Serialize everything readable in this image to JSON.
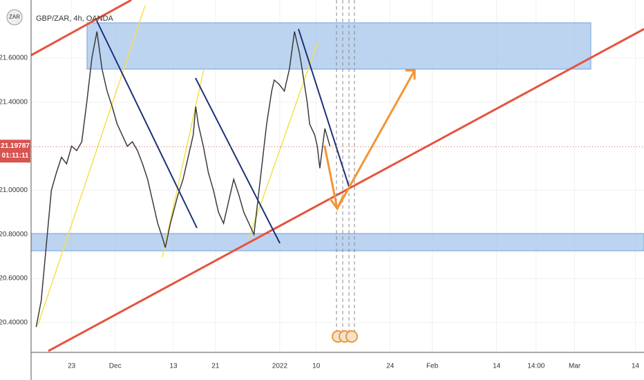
{
  "chart_data": {
    "type": "line",
    "title": "GBP/ZAR, 4h, OANDA",
    "symbol_badge": "ZAR",
    "color": "#3a3a3a",
    "x": [
      -7,
      -6,
      -5,
      -4,
      -3,
      -2,
      -1,
      0,
      1,
      2,
      3,
      4,
      5,
      6,
      7,
      8,
      9,
      10,
      11,
      12,
      13,
      14,
      15,
      16,
      17,
      18,
      18.5,
      19.5,
      21,
      22,
      23,
      24,
      24.5,
      25,
      26,
      27,
      28,
      29,
      30,
      31,
      32,
      33,
      34,
      35,
      36,
      37,
      38,
      38.5,
      39.5,
      40,
      41,
      42,
      43,
      44,
      45,
      45.5,
      46.5,
      47,
      48,
      48.5,
      49,
      50,
      51
    ],
    "values": [
      20.38,
      20.5,
      20.75,
      21.0,
      21.08,
      21.15,
      21.12,
      21.2,
      21.18,
      21.22,
      21.4,
      21.6,
      21.72,
      21.55,
      21.45,
      21.38,
      21.3,
      21.25,
      21.2,
      21.22,
      21.18,
      21.12,
      21.05,
      20.95,
      20.85,
      20.78,
      20.74,
      20.85,
      20.98,
      21.05,
      21.15,
      21.25,
      21.38,
      21.3,
      21.2,
      21.08,
      21.0,
      20.9,
      20.85,
      20.95,
      21.05,
      20.98,
      20.9,
      20.85,
      20.8,
      21.0,
      21.2,
      21.3,
      21.45,
      21.5,
      21.48,
      21.45,
      21.55,
      21.72,
      21.62,
      21.55,
      21.4,
      21.3,
      21.25,
      21.2,
      21.1,
      21.28,
      21.2
    ],
    "ylim": [
      20.265,
      21.863
    ],
    "yticks": [
      {
        "value": 20.4,
        "label": "20.40000"
      },
      {
        "value": 20.6,
        "label": "20.60000"
      },
      {
        "value": 20.8,
        "label": "20.80000"
      },
      {
        "value": 21.0,
        "label": "21.00000"
      },
      {
        "value": 21.4,
        "label": "21.40000"
      },
      {
        "value": 21.6,
        "label": "21.60000"
      }
    ],
    "xlim": [
      -8,
      113
    ],
    "xticks": [
      {
        "value": 0,
        "label": "23"
      },
      {
        "value": 8.6,
        "label": "Dec"
      },
      {
        "value": 20.1,
        "label": "13"
      },
      {
        "value": 28.4,
        "label": "21"
      },
      {
        "value": 41.1,
        "label": "2022"
      },
      {
        "value": 48.3,
        "label": "10"
      },
      {
        "value": 62.9,
        "label": "24"
      },
      {
        "value": 71.2,
        "label": "Feb"
      },
      {
        "value": 83.9,
        "label": "14"
      },
      {
        "value": 91.7,
        "label": "14:00"
      },
      {
        "value": 99.3,
        "label": "Mar"
      },
      {
        "value": 111.3,
        "label": "14"
      }
    ],
    "current_price": {
      "value": 21.19787,
      "label": "21.19787",
      "countdown": "01:11:11"
    }
  }
}
